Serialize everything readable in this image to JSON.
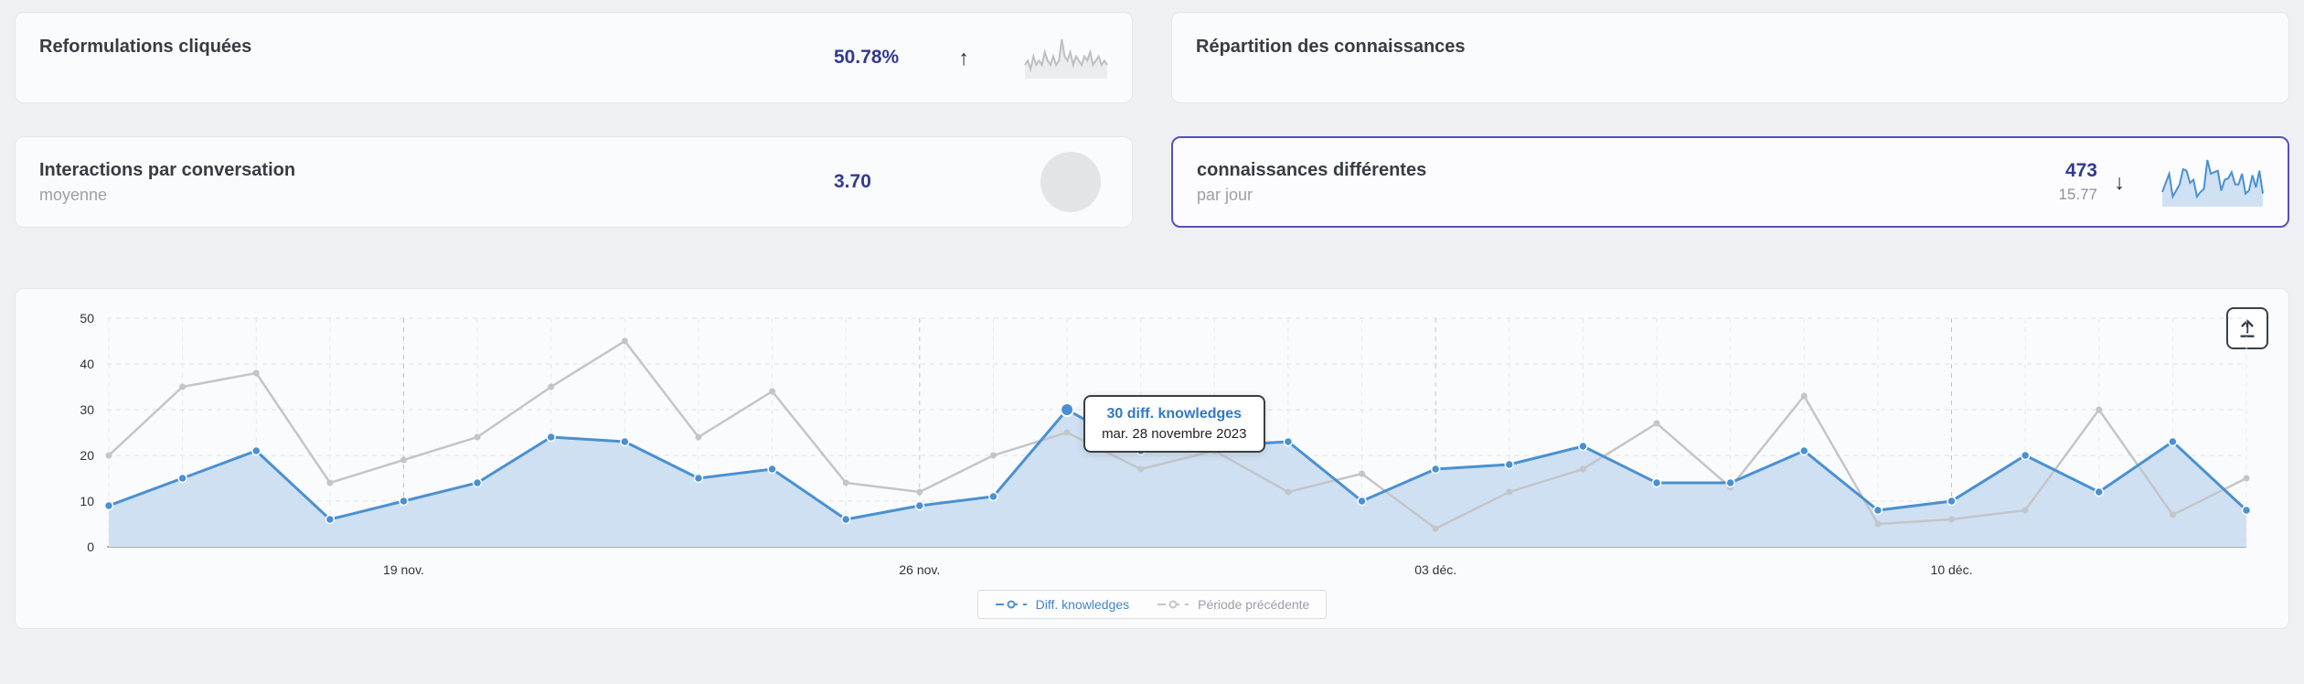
{
  "page": {
    "background": "#eff0f4"
  },
  "cards": {
    "reformulations": {
      "title": "Reformulations cliquées",
      "value": "50.78%",
      "trend_icon": "↑",
      "trend_direction": "up",
      "sparkline": [
        3,
        4,
        2,
        5,
        3,
        4,
        3,
        6,
        4,
        3,
        5,
        3,
        4,
        9,
        5,
        4,
        6,
        3,
        5,
        4,
        3,
        5,
        4,
        6,
        3,
        4,
        5,
        3,
        4,
        3
      ]
    },
    "repartition": {
      "title": "Répartition des connaissances"
    },
    "interactions": {
      "title": "Interactions par conversation",
      "subtitle": "moyenne",
      "value": "3.70"
    },
    "connaissances": {
      "title": "connaissances différentes",
      "subtitle": "par jour",
      "value": "473",
      "per_day_value": "15.77",
      "trend_icon": "↓",
      "trend_direction": "down",
      "highlighted": true
    }
  },
  "chart_data": {
    "type": "line",
    "title": "",
    "xlabel": "",
    "ylabel": "",
    "ylim": [
      0,
      50
    ],
    "y_ticks": [
      0,
      10,
      20,
      30,
      40,
      50
    ],
    "x_tick_labels": [
      "19 nov.",
      "26 nov.",
      "03 déc.",
      "10 déc."
    ],
    "x_tick_indices": [
      4,
      11,
      18,
      25
    ],
    "grid": true,
    "legend_position": "bottom",
    "series": [
      {
        "name": "Diff. knowledges",
        "color": "#4a90d2",
        "area_fill": "#cfe0f2",
        "values": [
          9,
          15,
          21,
          6,
          10,
          14,
          24,
          23,
          15,
          17,
          6,
          9,
          11,
          30,
          21,
          22,
          23,
          10,
          17,
          18,
          22,
          14,
          14,
          21,
          8,
          10,
          20,
          12,
          23,
          8
        ]
      },
      {
        "name": "Période précédente",
        "color": "#c3c5c9",
        "values": [
          20,
          35,
          38,
          14,
          19,
          24,
          35,
          45,
          24,
          34,
          14,
          12,
          20,
          25,
          17,
          21,
          12,
          16,
          4,
          12,
          17,
          27,
          13,
          33,
          5,
          6,
          8,
          30,
          7,
          15
        ]
      }
    ],
    "highlighted_point": {
      "series": 0,
      "index": 13,
      "value": 30
    }
  },
  "tooltip": {
    "title": "30 diff. knowledges",
    "date": "mar. 28 novembre 2023"
  },
  "export_button": {
    "icon": "arrow-up-from-bar"
  },
  "colors": {
    "value_text": "#323a92",
    "highlight_border": "#5650c0",
    "tooltip_title": "#3478c2",
    "legend_blue": "#4285c7",
    "legend_gray": "#9aa0a6",
    "spark_gray": "#bdbfc4",
    "series_blue": "#4a90d2",
    "series_gray": "#c3c5c9"
  }
}
